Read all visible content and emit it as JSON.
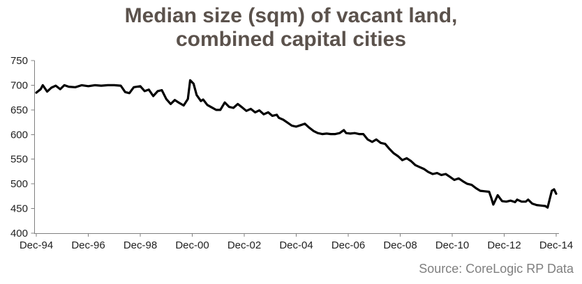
{
  "title": {
    "line1": "Median size (sqm) of vacant land,",
    "line2": "combined capital cities"
  },
  "source": "Source: CoreLogic RP Data",
  "colors": {
    "title_text": "#5b524c",
    "series_line": "#000000",
    "axis_line": "#808080",
    "tick_label": "#1f1f1f",
    "source_text": "#7f7f7f",
    "background": "#ffffff"
  },
  "chart_data": {
    "type": "line",
    "title": "Median size (sqm) of vacant land, combined capital cities",
    "source": "Source: CoreLogic RP Data",
    "xlabel": "",
    "ylabel": "",
    "grid": false,
    "legend": false,
    "ylim": [
      400,
      750
    ],
    "ytick_step": 50,
    "yticks": [
      750,
      700,
      650,
      600,
      550,
      500,
      450,
      400
    ],
    "xtick_labels": [
      "Dec-94",
      "Dec-96",
      "Dec-98",
      "Dec-00",
      "Dec-02",
      "Dec-04",
      "Dec-06",
      "Dec-08",
      "Dec-10",
      "Dec-12",
      "Dec-14"
    ],
    "xtick_interval_years": 2,
    "x_range_years_since_first_tick": [
      0,
      20
    ],
    "series": [
      {
        "points": [
          [
            0,
            685
          ],
          [
            0.17,
            692
          ],
          [
            0.25,
            700
          ],
          [
            0.42,
            687
          ],
          [
            0.58,
            695
          ],
          [
            0.75,
            699
          ],
          [
            0.92,
            692
          ],
          [
            1.08,
            700
          ],
          [
            1.25,
            697
          ],
          [
            1.5,
            696
          ],
          [
            1.75,
            700
          ],
          [
            2,
            698
          ],
          [
            2.25,
            700
          ],
          [
            2.5,
            699
          ],
          [
            2.75,
            700
          ],
          [
            3,
            700
          ],
          [
            3.25,
            699
          ],
          [
            3.42,
            686
          ],
          [
            3.58,
            684
          ],
          [
            3.75,
            696
          ],
          [
            4,
            698
          ],
          [
            4.17,
            688
          ],
          [
            4.33,
            691
          ],
          [
            4.5,
            678
          ],
          [
            4.67,
            688
          ],
          [
            4.83,
            690
          ],
          [
            5,
            672
          ],
          [
            5.17,
            662
          ],
          [
            5.33,
            670
          ],
          [
            5.5,
            664
          ],
          [
            5.67,
            659
          ],
          [
            5.83,
            672
          ],
          [
            5.92,
            710
          ],
          [
            6.05,
            703
          ],
          [
            6.17,
            680
          ],
          [
            6.33,
            668
          ],
          [
            6.42,
            671
          ],
          [
            6.58,
            660
          ],
          [
            6.75,
            655
          ],
          [
            6.92,
            650
          ],
          [
            7.08,
            650
          ],
          [
            7.25,
            665
          ],
          [
            7.42,
            656
          ],
          [
            7.58,
            654
          ],
          [
            7.75,
            662
          ],
          [
            7.92,
            655
          ],
          [
            8.08,
            648
          ],
          [
            8.25,
            652
          ],
          [
            8.42,
            645
          ],
          [
            8.58,
            649
          ],
          [
            8.75,
            641
          ],
          [
            8.92,
            645
          ],
          [
            9.08,
            638
          ],
          [
            9.25,
            640
          ],
          [
            9.33,
            634
          ],
          [
            9.5,
            630
          ],
          [
            9.67,
            624
          ],
          [
            9.83,
            618
          ],
          [
            10,
            616
          ],
          [
            10.17,
            619
          ],
          [
            10.33,
            622
          ],
          [
            10.5,
            614
          ],
          [
            10.67,
            607
          ],
          [
            10.83,
            603
          ],
          [
            11,
            601
          ],
          [
            11.17,
            602
          ],
          [
            11.33,
            601
          ],
          [
            11.5,
            601
          ],
          [
            11.67,
            603
          ],
          [
            11.83,
            609
          ],
          [
            11.92,
            603
          ],
          [
            12.08,
            602
          ],
          [
            12.25,
            603
          ],
          [
            12.42,
            601
          ],
          [
            12.58,
            601
          ],
          [
            12.75,
            590
          ],
          [
            12.92,
            585
          ],
          [
            13.08,
            590
          ],
          [
            13.25,
            583
          ],
          [
            13.42,
            581
          ],
          [
            13.58,
            571
          ],
          [
            13.75,
            562
          ],
          [
            13.92,
            556
          ],
          [
            14.08,
            548
          ],
          [
            14.25,
            552
          ],
          [
            14.42,
            546
          ],
          [
            14.58,
            538
          ],
          [
            14.75,
            534
          ],
          [
            14.92,
            530
          ],
          [
            15.08,
            524
          ],
          [
            15.25,
            520
          ],
          [
            15.42,
            522
          ],
          [
            15.58,
            518
          ],
          [
            15.75,
            520
          ],
          [
            15.92,
            514
          ],
          [
            16.08,
            508
          ],
          [
            16.25,
            511
          ],
          [
            16.42,
            505
          ],
          [
            16.58,
            500
          ],
          [
            16.75,
            498
          ],
          [
            16.92,
            491
          ],
          [
            17.08,
            486
          ],
          [
            17.25,
            485
          ],
          [
            17.42,
            484
          ],
          [
            17.5,
            472
          ],
          [
            17.58,
            458
          ],
          [
            17.75,
            477
          ],
          [
            17.92,
            465
          ],
          [
            18.08,
            464
          ],
          [
            18.25,
            466
          ],
          [
            18.42,
            463
          ],
          [
            18.5,
            468
          ],
          [
            18.67,
            464
          ],
          [
            18.83,
            464
          ],
          [
            18.92,
            468
          ],
          [
            19.08,
            460
          ],
          [
            19.25,
            457
          ],
          [
            19.42,
            456
          ],
          [
            19.58,
            455
          ],
          [
            19.67,
            452
          ],
          [
            19.83,
            486
          ],
          [
            19.92,
            489
          ],
          [
            20,
            480
          ]
        ]
      }
    ]
  }
}
